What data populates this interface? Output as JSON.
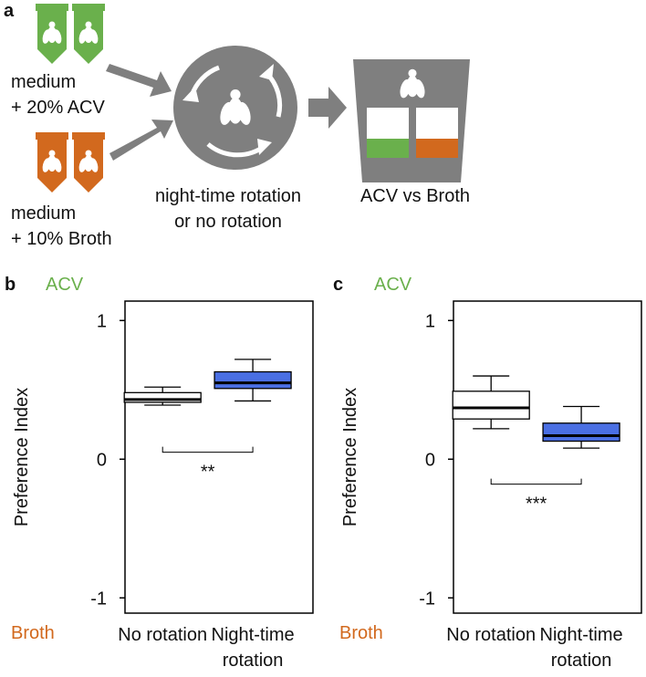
{
  "diagram": {
    "label": "a",
    "left_top": [
      "medium",
      "+ 20% ACV"
    ],
    "left_bottom": [
      "medium",
      "+ 10% Broth"
    ],
    "center": [
      "night-time rotation",
      "or no rotation"
    ],
    "right": "ACV vs Broth"
  },
  "chart_data": [
    {
      "type": "box",
      "panel": "b",
      "top_label": "ACV",
      "top_label_color": "#6ab04c",
      "bottom_label": "Broth",
      "bottom_label_color": "#d2691e",
      "ylabel": "Preference Index",
      "categories": [
        "No rotation",
        "Night-time rotation"
      ],
      "colors": [
        "#ffffff",
        "#4a6fe3"
      ],
      "boxes": [
        {
          "whislo": 0.39,
          "q1": 0.41,
          "med": 0.43,
          "q3": 0.48,
          "whishi": 0.52
        },
        {
          "whislo": 0.42,
          "q1": 0.51,
          "med": 0.55,
          "q3": 0.63,
          "whishi": 0.72
        }
      ],
      "ylim": [
        -1.11,
        1.14
      ],
      "yticks": [
        -1,
        0,
        1
      ],
      "significance": {
        "y": 0.05,
        "label": "**"
      }
    },
    {
      "type": "box",
      "panel": "c",
      "top_label": "ACV",
      "top_label_color": "#6ab04c",
      "bottom_label": "Broth",
      "bottom_label_color": "#d2691e",
      "ylabel": "Preference Index",
      "categories": [
        "No rotation",
        "Night-time rotation"
      ],
      "colors": [
        "#ffffff",
        "#4a6fe3"
      ],
      "boxes": [
        {
          "whislo": 0.22,
          "q1": 0.29,
          "med": 0.37,
          "q3": 0.49,
          "whishi": 0.6
        },
        {
          "whislo": 0.08,
          "q1": 0.13,
          "med": 0.17,
          "q3": 0.26,
          "whishi": 0.38
        }
      ],
      "ylim": [
        -1.11,
        1.14
      ],
      "yticks": [
        -1,
        0,
        1
      ],
      "significance": {
        "y": -0.18,
        "label": "***"
      }
    }
  ]
}
